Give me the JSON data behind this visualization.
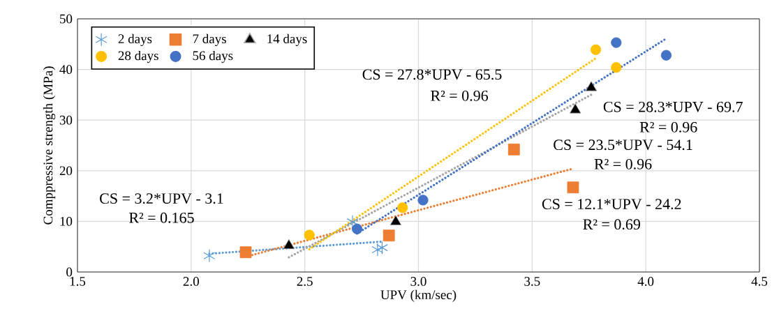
{
  "chart_data": {
    "type": "scatter",
    "xlabel": "UPV (km/sec)",
    "ylabel": "Comppressive strength (MPa)",
    "xlim": [
      1.5,
      4.5
    ],
    "xticks": [
      {
        "value": 1.5,
        "label": "1.5"
      },
      {
        "value": 2.0,
        "label": "2.0"
      },
      {
        "value": 2.5,
        "label": "2.5"
      },
      {
        "value": 3.0,
        "label": "3.0"
      },
      {
        "value": 3.5,
        "label": "3.5"
      },
      {
        "value": 4.0,
        "label": "4.0"
      },
      {
        "value": 4.5,
        "label": "4.5"
      }
    ],
    "ylim": [
      0,
      50
    ],
    "yticks": [
      0,
      10,
      20,
      30,
      40,
      50
    ],
    "grid": true,
    "legend": "top left",
    "series": [
      {
        "type": "line",
        "color": "#5b9bd5",
        "line_style": "dotted",
        "marker": "none",
        "x": [
          2.08,
          2.84
        ],
        "values": [
          3.6,
          6.0
        ]
      },
      {
        "type": "line",
        "color": "#ed7d31",
        "line_style": "dotted",
        "marker": "none",
        "x": [
          2.24,
          3.67
        ],
        "values": [
          3.0,
          20.3
        ]
      },
      {
        "type": "line",
        "color": "#a5a5a5",
        "line_style": "dotted",
        "marker": "none",
        "x": [
          2.43,
          3.76
        ],
        "values": [
          2.9,
          35.0
        ]
      },
      {
        "type": "line",
        "color": "#ffc000",
        "line_style": "dotted",
        "marker": "none",
        "x": [
          2.52,
          3.78
        ],
        "values": [
          4.5,
          42.2
        ]
      },
      {
        "type": "line",
        "color": "#4472c4",
        "line_style": "dotted",
        "marker": "none",
        "x": [
          2.73,
          4.09
        ],
        "values": [
          7.6,
          46.1
        ]
      },
      {
        "name": "2 days",
        "color": "#5b9bd5",
        "marker": "cross",
        "x": [
          2.08,
          2.71,
          2.82,
          2.84
        ],
        "values": [
          3.2,
          9.9,
          4.4,
          4.8
        ]
      },
      {
        "name": "7 days",
        "color": "#ed7d31",
        "marker": "square",
        "x": [
          2.24,
          2.87,
          3.42,
          3.68
        ],
        "values": [
          3.9,
          7.2,
          24.2,
          16.7
        ]
      },
      {
        "name": "14 days",
        "color": "#000000",
        "marker": "triangle",
        "x": [
          2.43,
          2.9,
          3.69,
          3.76
        ],
        "values": [
          5.2,
          9.9,
          32.0,
          36.4
        ]
      },
      {
        "name": "28 days",
        "color": "#ffc000",
        "marker": "circle",
        "x": [
          2.52,
          2.93,
          3.78,
          3.87
        ],
        "values": [
          7.3,
          12.7,
          43.9,
          40.4
        ]
      },
      {
        "name": "56 days",
        "color": "#4472c4",
        "marker": "circle",
        "x": [
          2.73,
          3.02,
          3.87,
          4.09
        ],
        "values": [
          8.5,
          14.2,
          45.3,
          42.8
        ]
      }
    ],
    "annotations": [
      "CS = 27.8*UPV - 65.5",
      "R² = 0.96",
      "CS = 28.3*UPV - 69.7",
      "R² = 0.96",
      "CS = 23.5*UPV - 54.1",
      "R² = 0.96",
      "CS = 12.1*UPV - 24.2",
      "R² = 0.69",
      "CS = 3.2*UPV - 3.1",
      "R² = 0.165"
    ]
  }
}
